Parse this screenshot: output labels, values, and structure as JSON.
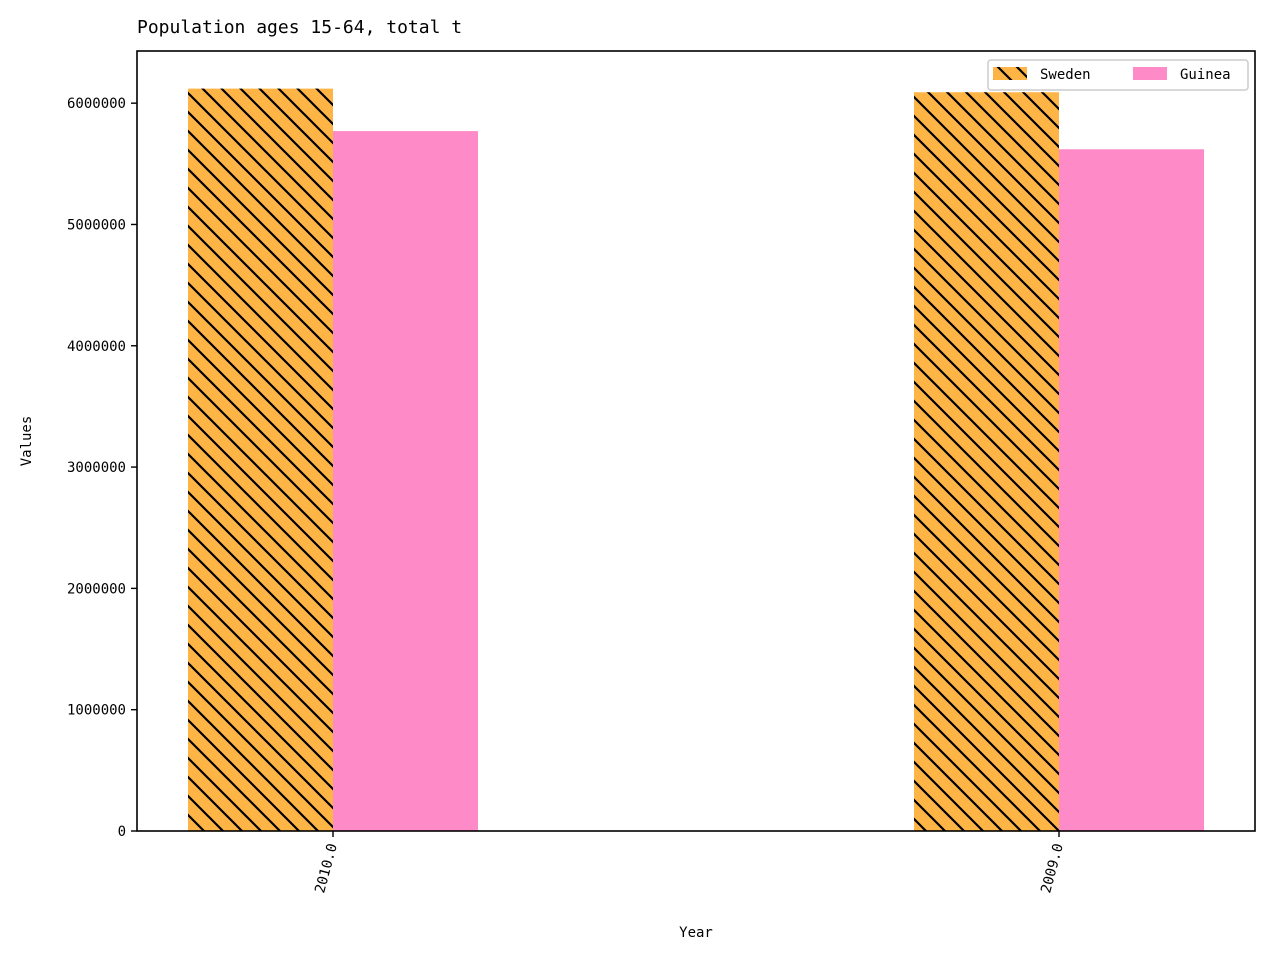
{
  "chart_data": {
    "type": "bar",
    "title": "Population ages 15-64, total t",
    "xlabel": "Year",
    "ylabel": "Values",
    "categories": [
      "2010.0",
      "2009.0"
    ],
    "series": [
      {
        "name": "Sweden",
        "values": [
          6120000,
          6090000
        ],
        "color": "#ffb545",
        "hatch": "diagonal"
      },
      {
        "name": "Guinea",
        "values": [
          5770000,
          5620000
        ],
        "color": "#ff8ac8",
        "hatch": "none"
      }
    ],
    "ylim": [
      0,
      6430000
    ],
    "yticks": [
      0,
      1000000,
      2000000,
      3000000,
      4000000,
      5000000,
      6000000
    ],
    "legend_position": "top-right",
    "grid": false
  }
}
